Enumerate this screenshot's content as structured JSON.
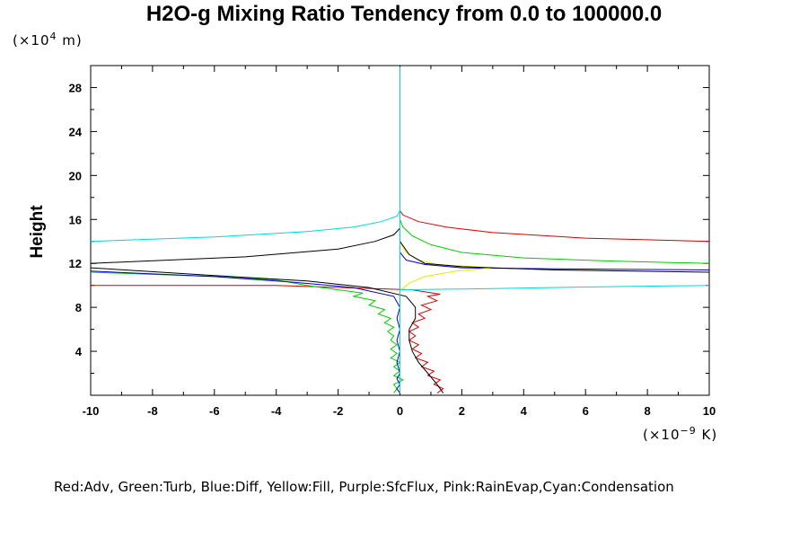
{
  "chart_data": {
    "type": "line",
    "title": "H2O-g Mixing Ratio Tendency from 0.0 to 100000.0",
    "ylabel": "Height",
    "y_unit_prefix": "(×10",
    "y_unit_exp": "4",
    "y_unit_suffix": " m)",
    "x_unit_prefix": "(×10",
    "x_unit_exp": "−9",
    "x_unit_suffix": " K)",
    "xlim": [
      -10,
      10
    ],
    "ylim": [
      0,
      30
    ],
    "x_ticks": [
      -10,
      -8,
      -6,
      -4,
      -2,
      0,
      2,
      4,
      6,
      8,
      10
    ],
    "y_ticks": [
      4,
      8,
      12,
      16,
      20,
      24,
      28
    ],
    "grid": false,
    "legend_text": "Red:Adv, Green:Turb, Blue:Diff, Yellow:Fill, Purple:SfcFlux, Pink:RainEvap,Cyan:Condensation",
    "series": [
      {
        "color": "#d40000",
        "points": [
          [
            1.2,
            0.2
          ],
          [
            1.4,
            0.6
          ],
          [
            1.1,
            1.0
          ],
          [
            1.3,
            1.4
          ],
          [
            0.9,
            1.8
          ],
          [
            1.1,
            2.2
          ],
          [
            0.7,
            2.6
          ],
          [
            0.9,
            3.0
          ],
          [
            0.5,
            3.4
          ],
          [
            0.7,
            3.8
          ],
          [
            0.4,
            4.2
          ],
          [
            0.6,
            4.6
          ],
          [
            0.3,
            5.0
          ],
          [
            0.5,
            5.4
          ],
          [
            0.3,
            5.8
          ],
          [
            0.6,
            6.2
          ],
          [
            0.4,
            6.6
          ],
          [
            0.8,
            7.0
          ],
          [
            0.6,
            7.4
          ],
          [
            1.0,
            7.8
          ],
          [
            0.7,
            8.2
          ],
          [
            1.2,
            8.6
          ],
          [
            0.9,
            9.0
          ],
          [
            1.3,
            9.2
          ],
          [
            0.4,
            9.6
          ],
          [
            -4,
            10.0
          ],
          [
            -10,
            10.0
          ]
        ]
      },
      {
        "color": "#d40000",
        "points": [
          [
            10,
            14.0
          ],
          [
            6,
            14.3
          ],
          [
            3,
            14.8
          ],
          [
            1.5,
            15.3
          ],
          [
            0.6,
            15.8
          ],
          [
            0.1,
            16.4
          ],
          [
            0,
            16.8
          ]
        ]
      },
      {
        "color": "#00cc00",
        "points": [
          [
            -0.2,
            0.2
          ],
          [
            -0.1,
            0.6
          ],
          [
            -0.2,
            1.0
          ],
          [
            0.1,
            1.4
          ],
          [
            -0.2,
            1.8
          ],
          [
            0.0,
            2.2
          ],
          [
            -0.2,
            2.6
          ],
          [
            0.0,
            3.0
          ],
          [
            -0.3,
            3.4
          ],
          [
            -0.1,
            3.8
          ],
          [
            -0.3,
            4.2
          ],
          [
            -0.1,
            4.6
          ],
          [
            -0.3,
            5.0
          ],
          [
            -0.2,
            5.4
          ],
          [
            -0.4,
            5.8
          ],
          [
            -0.2,
            6.2
          ],
          [
            -0.5,
            6.6
          ],
          [
            -0.3,
            7.0
          ],
          [
            -0.7,
            7.4
          ],
          [
            -0.5,
            7.8
          ],
          [
            -1.0,
            8.2
          ],
          [
            -0.8,
            8.6
          ],
          [
            -1.5,
            9.0
          ],
          [
            -1.2,
            9.3
          ],
          [
            -2.0,
            9.6
          ],
          [
            -3.0,
            10.0
          ],
          [
            -4.0,
            10.5
          ],
          [
            -6.0,
            10.8
          ],
          [
            -10,
            11.2
          ]
        ]
      },
      {
        "color": "#00cc00",
        "points": [
          [
            10,
            12.0
          ],
          [
            7,
            12.2
          ],
          [
            4,
            12.5
          ],
          [
            2,
            13.0
          ],
          [
            1.0,
            13.7
          ],
          [
            0.4,
            14.5
          ],
          [
            0.1,
            15.3
          ],
          [
            0,
            16.0
          ]
        ]
      },
      {
        "color": "#0000d0",
        "points": [
          [
            0.0,
            0.2
          ],
          [
            -0.1,
            0.6
          ],
          [
            0.0,
            1.0
          ],
          [
            -0.1,
            1.5
          ],
          [
            0.0,
            2.0
          ],
          [
            -0.1,
            3.0
          ],
          [
            0.0,
            4.0
          ],
          [
            -0.1,
            5.0
          ],
          [
            0.0,
            6.0
          ],
          [
            -0.1,
            7.0
          ],
          [
            0.0,
            8.0
          ],
          [
            -0.2,
            9.0
          ],
          [
            -1.5,
            9.8
          ],
          [
            -3.5,
            10.3
          ],
          [
            -6,
            10.8
          ],
          [
            -10,
            11.3
          ]
        ]
      },
      {
        "color": "#0000d0",
        "points": [
          [
            10,
            11.4
          ],
          [
            5,
            11.5
          ],
          [
            2,
            11.6
          ],
          [
            0.8,
            11.9
          ],
          [
            0.2,
            12.3
          ],
          [
            0,
            13.0
          ],
          [
            0,
            14.5
          ]
        ]
      },
      {
        "color": "#e8e800",
        "points": [
          [
            0,
            9.5
          ],
          [
            0.3,
            10.2
          ],
          [
            0.8,
            10.8
          ],
          [
            1.8,
            11.3
          ],
          [
            3,
            11.6
          ],
          [
            1.2,
            11.9
          ],
          [
            0.6,
            12.3
          ],
          [
            0.2,
            13.0
          ],
          [
            0,
            14.0
          ]
        ]
      },
      {
        "color": "#000000",
        "points": [
          [
            1.4,
            0.2
          ],
          [
            1.2,
            1.0
          ],
          [
            0.9,
            2.0
          ],
          [
            0.6,
            3.0
          ],
          [
            0.4,
            4.0
          ],
          [
            0.3,
            5.0
          ],
          [
            0.3,
            6.0
          ],
          [
            0.5,
            7.0
          ],
          [
            0.5,
            8.0
          ],
          [
            0.2,
            9.0
          ],
          [
            -1.0,
            9.8
          ],
          [
            -3.0,
            10.4
          ],
          [
            -6,
            10.9
          ],
          [
            -10,
            11.6
          ]
        ]
      },
      {
        "color": "#000000",
        "points": [
          [
            10,
            11.2
          ],
          [
            5,
            11.4
          ],
          [
            2,
            11.7
          ],
          [
            0.8,
            12.0
          ],
          [
            0.3,
            12.8
          ],
          [
            0,
            14.0
          ],
          [
            0,
            15.0
          ]
        ]
      },
      {
        "color": "#000000",
        "points": [
          [
            -10,
            12.0
          ],
          [
            -5,
            12.6
          ],
          [
            -2,
            13.3
          ],
          [
            -0.8,
            14.0
          ],
          [
            -0.2,
            14.6
          ],
          [
            0,
            15.2
          ]
        ]
      },
      {
        "color": "#00d8d8",
        "points": [
          [
            0,
            0.2
          ],
          [
            0,
            5
          ],
          [
            0,
            10
          ],
          [
            0,
            15
          ],
          [
            0,
            20
          ],
          [
            0,
            25
          ],
          [
            0,
            29.9
          ]
        ]
      },
      {
        "color": "#00d8d8",
        "points": [
          [
            -10,
            14.0
          ],
          [
            -6,
            14.4
          ],
          [
            -3,
            14.9
          ],
          [
            -1.5,
            15.3
          ],
          [
            -0.6,
            15.8
          ],
          [
            -0.1,
            16.3
          ],
          [
            0,
            16.8
          ]
        ]
      },
      {
        "color": "#00d8d8",
        "points": [
          [
            0,
            9.6
          ],
          [
            3,
            9.7
          ],
          [
            6,
            9.85
          ],
          [
            10,
            10.0
          ]
        ]
      }
    ]
  }
}
